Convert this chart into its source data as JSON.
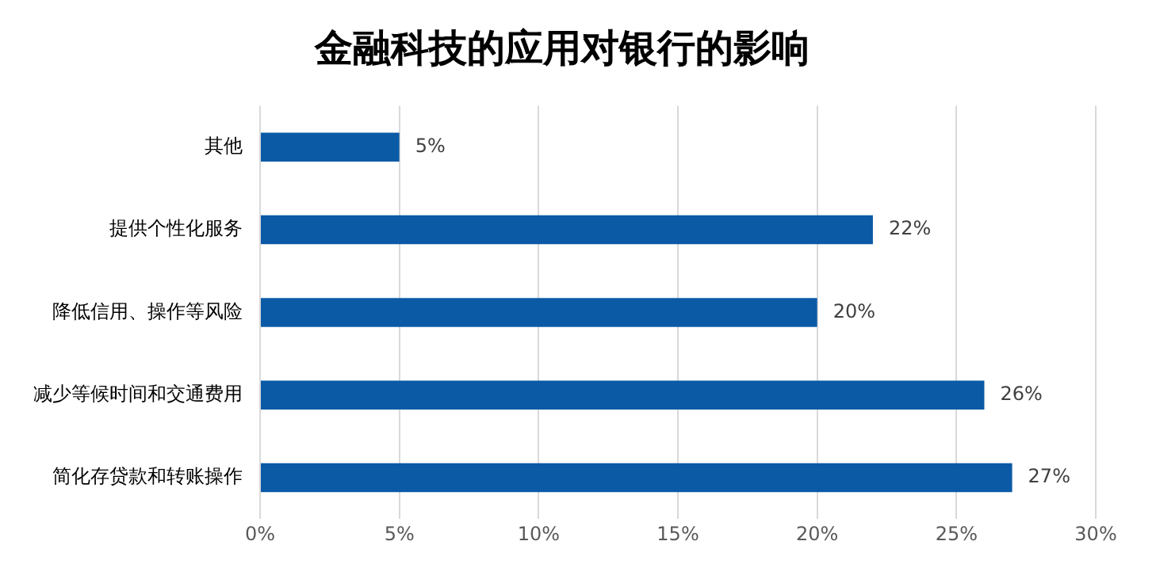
{
  "chart_data": {
    "type": "bar",
    "orientation": "horizontal",
    "title": "金融科技的应用对银行的影响",
    "categories": [
      "其他",
      "提供个性化服务",
      "降低信用、操作等风险",
      "减少等候时间和交通费用",
      "简化存贷款和转账操作"
    ],
    "values": [
      5,
      22,
      20,
      26,
      27
    ],
    "color": "#0a5aa6",
    "value_labels": [
      "5%",
      "22%",
      "20%",
      "26%",
      "27%"
    ],
    "xlim": [
      0,
      30
    ],
    "xticks": [
      {
        "value": 0,
        "label": "0%"
      },
      {
        "value": 5,
        "label": "5%"
      },
      {
        "value": 10,
        "label": "10%"
      },
      {
        "value": 15,
        "label": "15%"
      },
      {
        "value": 20,
        "label": "20%"
      },
      {
        "value": 25,
        "label": "25%"
      },
      {
        "value": 30,
        "label": "30%"
      }
    ],
    "grid": "x",
    "legend": false
  }
}
